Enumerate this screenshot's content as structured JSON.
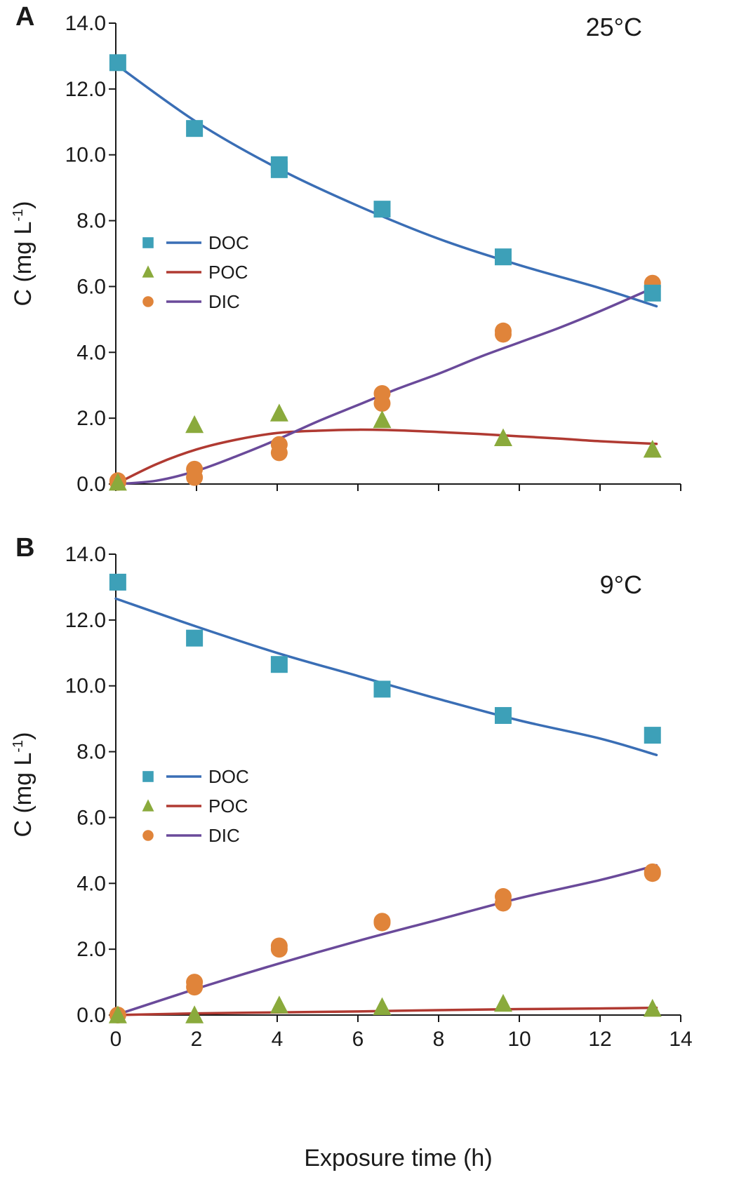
{
  "figure": {
    "xlabel": "Exposure time (h)",
    "xticks": [
      "0",
      "2",
      "4",
      "6",
      "8",
      "10",
      "12",
      "14"
    ],
    "xlim": [
      0,
      14
    ]
  },
  "colors": {
    "DOC_marker": "#3da0b8",
    "DOC_line": "#3a6eb5",
    "POC_marker": "#8aaa3c",
    "POC_line": "#b03a32",
    "DIC_marker": "#e0843a",
    "DIC_line": "#6a4a9a",
    "axis": "#1a1a1a"
  },
  "chart_data": [
    {
      "type": "scatter",
      "panel": "A",
      "annotation": "25°C",
      "ylabel": "C (mg L",
      "ylabel_sup": "-1",
      "ylabel_close": ")",
      "ylim": [
        0,
        14
      ],
      "yticks": [
        "0.0",
        "2.0",
        "4.0",
        "6.0",
        "8.0",
        "10.0",
        "12.0",
        "14.0"
      ],
      "legend": [
        "DOC",
        "POC",
        "DIC"
      ],
      "legend_position": "left-middle",
      "grid": false,
      "series": [
        {
          "name": "DOC",
          "marker": "square",
          "points": [
            [
              0.05,
              12.8
            ],
            [
              1.95,
              10.8
            ],
            [
              4.05,
              9.7
            ],
            [
              4.05,
              9.55
            ],
            [
              6.6,
              8.35
            ],
            [
              9.6,
              6.9
            ],
            [
              13.3,
              5.8
            ]
          ],
          "fit": [
            [
              0,
              12.75
            ],
            [
              2,
              11.0
            ],
            [
              4,
              9.6
            ],
            [
              6,
              8.45
            ],
            [
              8,
              7.45
            ],
            [
              10,
              6.65
            ],
            [
              12,
              5.95
            ],
            [
              13.4,
              5.4
            ]
          ]
        },
        {
          "name": "POC",
          "marker": "triangle",
          "points": [
            [
              0.05,
              0.05
            ],
            [
              1.95,
              1.8
            ],
            [
              4.05,
              2.15
            ],
            [
              6.6,
              1.95
            ],
            [
              9.6,
              1.4
            ],
            [
              13.3,
              1.05
            ]
          ],
          "fit": [
            [
              0,
              0.0
            ],
            [
              1,
              0.6
            ],
            [
              2,
              1.05
            ],
            [
              3,
              1.35
            ],
            [
              4,
              1.55
            ],
            [
              5,
              1.62
            ],
            [
              6,
              1.65
            ],
            [
              7,
              1.63
            ],
            [
              8,
              1.58
            ],
            [
              9,
              1.52
            ],
            [
              10,
              1.45
            ],
            [
              11,
              1.38
            ],
            [
              12,
              1.3
            ],
            [
              13.4,
              1.22
            ]
          ]
        },
        {
          "name": "DIC",
          "marker": "circle",
          "points": [
            [
              0.05,
              0.05
            ],
            [
              0.05,
              0.1
            ],
            [
              1.95,
              0.2
            ],
            [
              1.95,
              0.45
            ],
            [
              4.05,
              0.95
            ],
            [
              4.05,
              1.2
            ],
            [
              6.6,
              2.45
            ],
            [
              6.6,
              2.75
            ],
            [
              9.6,
              4.55
            ],
            [
              9.6,
              4.65
            ],
            [
              13.3,
              6.0
            ],
            [
              13.3,
              6.1
            ]
          ],
          "fit": [
            [
              0,
              0.0
            ],
            [
              1,
              0.1
            ],
            [
              2,
              0.4
            ],
            [
              3,
              0.85
            ],
            [
              4,
              1.35
            ],
            [
              5,
              1.9
            ],
            [
              6,
              2.4
            ],
            [
              7,
              2.9
            ],
            [
              8,
              3.35
            ],
            [
              9,
              3.85
            ],
            [
              10,
              4.3
            ],
            [
              11,
              4.75
            ],
            [
              12,
              5.25
            ],
            [
              13.4,
              6.0
            ]
          ]
        }
      ]
    },
    {
      "type": "scatter",
      "panel": "B",
      "annotation": "9°C",
      "ylabel": "C (mg L",
      "ylabel_sup": "-1",
      "ylabel_close": ")",
      "ylim": [
        0,
        14
      ],
      "yticks": [
        "0.0",
        "2.0",
        "4.0",
        "6.0",
        "8.0",
        "10.0",
        "12.0",
        "14.0"
      ],
      "legend": [
        "DOC",
        "POC",
        "DIC"
      ],
      "legend_position": "left-middle",
      "grid": false,
      "series": [
        {
          "name": "DOC",
          "marker": "square",
          "points": [
            [
              0.05,
              13.15
            ],
            [
              1.95,
              11.45
            ],
            [
              4.05,
              10.65
            ],
            [
              6.6,
              9.9
            ],
            [
              9.6,
              9.1
            ],
            [
              13.3,
              8.5
            ]
          ],
          "fit": [
            [
              0,
              12.65
            ],
            [
              2,
              11.8
            ],
            [
              4,
              11.0
            ],
            [
              6,
              10.3
            ],
            [
              8,
              9.6
            ],
            [
              10,
              8.95
            ],
            [
              12,
              8.4
            ],
            [
              13.4,
              7.9
            ]
          ]
        },
        {
          "name": "POC",
          "marker": "triangle",
          "points": [
            [
              0.05,
              0.0
            ],
            [
              1.95,
              0.0
            ],
            [
              4.05,
              0.3
            ],
            [
              6.6,
              0.25
            ],
            [
              9.6,
              0.35
            ],
            [
              13.3,
              0.2
            ]
          ],
          "fit": [
            [
              0,
              0.0
            ],
            [
              2,
              0.05
            ],
            [
              4,
              0.08
            ],
            [
              6,
              0.11
            ],
            [
              8,
              0.15
            ],
            [
              10,
              0.18
            ],
            [
              12,
              0.2
            ],
            [
              13.4,
              0.22
            ]
          ]
        },
        {
          "name": "DIC",
          "marker": "circle",
          "points": [
            [
              0.05,
              0.0
            ],
            [
              1.95,
              0.85
            ],
            [
              1.95,
              1.0
            ],
            [
              4.05,
              2.0
            ],
            [
              4.05,
              2.1
            ],
            [
              6.6,
              2.8
            ],
            [
              6.6,
              2.85
            ],
            [
              9.6,
              3.4
            ],
            [
              9.6,
              3.6
            ],
            [
              13.3,
              4.3
            ],
            [
              13.3,
              4.35
            ]
          ],
          "fit": [
            [
              0,
              0.0
            ],
            [
              2,
              0.8
            ],
            [
              4,
              1.55
            ],
            [
              6,
              2.25
            ],
            [
              8,
              2.9
            ],
            [
              10,
              3.55
            ],
            [
              12,
              4.1
            ],
            [
              13.4,
              4.55
            ]
          ]
        }
      ]
    }
  ]
}
